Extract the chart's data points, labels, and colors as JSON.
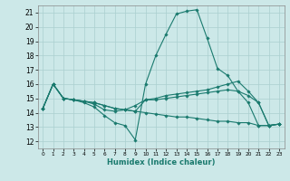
{
  "xlabel": "Humidex (Indice chaleur)",
  "ylabel": "",
  "background_color": "#cce8e8",
  "grid_color": "#aacfcf",
  "line_color": "#1a7a6e",
  "xlim": [
    -0.5,
    23.5
  ],
  "ylim": [
    11.5,
    21.5
  ],
  "yticks": [
    12,
    13,
    14,
    15,
    16,
    17,
    18,
    19,
    20,
    21
  ],
  "xticks": [
    0,
    1,
    2,
    3,
    4,
    5,
    6,
    7,
    8,
    9,
    10,
    11,
    12,
    13,
    14,
    15,
    16,
    17,
    18,
    19,
    20,
    21,
    22,
    23
  ],
  "lines": [
    {
      "x": [
        0,
        1,
        2,
        3,
        4,
        5,
        6,
        7,
        8,
        9,
        10,
        11,
        12,
        13,
        14,
        15,
        16,
        17,
        18,
        19,
        20,
        21,
        22,
        23
      ],
      "y": [
        14.3,
        16.0,
        15.0,
        14.9,
        14.7,
        14.4,
        13.8,
        13.3,
        13.1,
        12.1,
        16.0,
        18.0,
        19.5,
        20.9,
        21.1,
        21.2,
        19.2,
        17.1,
        16.6,
        15.5,
        14.7,
        13.1,
        13.1,
        13.2
      ]
    },
    {
      "x": [
        0,
        1,
        2,
        3,
        4,
        5,
        6,
        7,
        8,
        9,
        10,
        11,
        12,
        13,
        14,
        15,
        16,
        17,
        18,
        19,
        20,
        21,
        22,
        23
      ],
      "y": [
        14.3,
        16.0,
        15.0,
        14.9,
        14.8,
        14.6,
        14.2,
        14.1,
        14.2,
        14.5,
        14.9,
        15.0,
        15.2,
        15.3,
        15.4,
        15.5,
        15.6,
        15.8,
        16.0,
        16.2,
        15.5,
        14.7,
        13.1,
        13.2
      ]
    },
    {
      "x": [
        0,
        1,
        2,
        3,
        4,
        5,
        6,
        7,
        8,
        9,
        10,
        11,
        12,
        13,
        14,
        15,
        16,
        17,
        18,
        19,
        20,
        21,
        22,
        23
      ],
      "y": [
        14.3,
        16.0,
        15.0,
        14.9,
        14.8,
        14.7,
        14.5,
        14.3,
        14.2,
        14.1,
        14.9,
        14.9,
        15.0,
        15.1,
        15.2,
        15.3,
        15.4,
        15.5,
        15.6,
        15.5,
        15.2,
        14.7,
        13.1,
        13.2
      ]
    },
    {
      "x": [
        0,
        1,
        2,
        3,
        4,
        5,
        6,
        7,
        8,
        9,
        10,
        11,
        12,
        13,
        14,
        15,
        16,
        17,
        18,
        19,
        20,
        21,
        22,
        23
      ],
      "y": [
        14.3,
        16.0,
        15.0,
        14.9,
        14.8,
        14.7,
        14.5,
        14.3,
        14.2,
        14.1,
        14.0,
        13.9,
        13.8,
        13.7,
        13.7,
        13.6,
        13.5,
        13.4,
        13.4,
        13.3,
        13.3,
        13.1,
        13.1,
        13.2
      ]
    }
  ]
}
